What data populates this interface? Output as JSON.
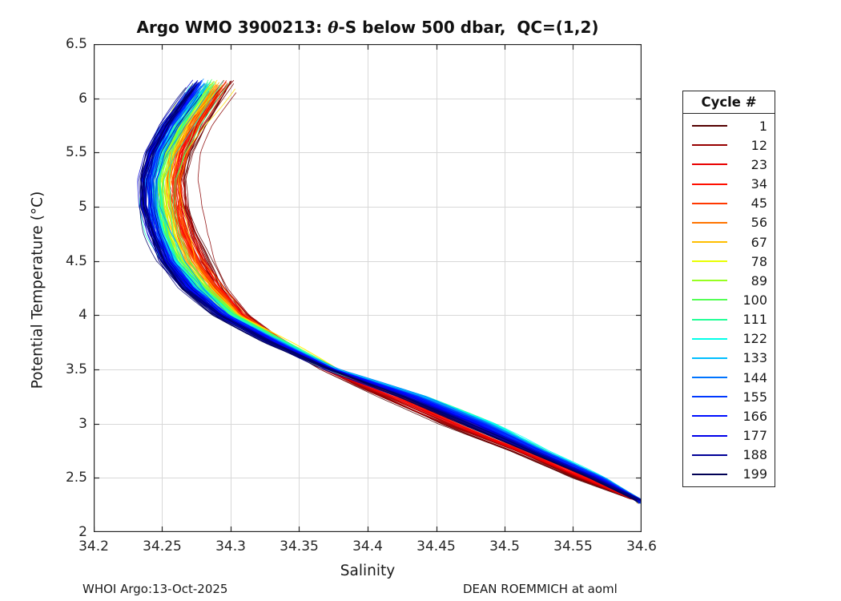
{
  "chart_data": {
    "type": "line",
    "title": {
      "prefix": "Argo WMO 3900213: ",
      "theta": "θ",
      "suffix": "-S below 500 dbar,  QC=(1,2)"
    },
    "xlabel": "Salinity",
    "ylabel": "Potential Temperature (°C)",
    "xlim": [
      34.2,
      34.6
    ],
    "ylim": [
      2,
      6.5
    ],
    "x_ticks": [
      34.2,
      34.25,
      34.3,
      34.35,
      34.4,
      34.45,
      34.5,
      34.55,
      34.6
    ],
    "x_tick_labels": [
      "34.2",
      "34.25",
      "34.3",
      "34.35",
      "34.4",
      "34.45",
      "34.5",
      "34.55",
      "34.6"
    ],
    "y_ticks": [
      2,
      2.5,
      3,
      3.5,
      4,
      4.5,
      5,
      5.5,
      6,
      6.5
    ],
    "y_tick_labels": [
      "2",
      "2.5",
      "3",
      "3.5",
      "4",
      "4.5",
      "5",
      "5.5",
      "6",
      "6.5"
    ],
    "grid": true,
    "grid_color": "#d8d8d8",
    "axis_color": "#262626",
    "background_color": "#ffffff",
    "legend": {
      "title": "Cycle #",
      "position": "outside-right",
      "entries": [
        {
          "label": "1",
          "color": "#540000"
        },
        {
          "label": "12",
          "color": "#970000"
        },
        {
          "label": "23",
          "color": "#E90000"
        },
        {
          "label": "34",
          "color": "#FF0F00"
        },
        {
          "label": "45",
          "color": "#FF3800"
        },
        {
          "label": "56",
          "color": "#FF7400"
        },
        {
          "label": "67",
          "color": "#FFBE00"
        },
        {
          "label": "78",
          "color": "#E9FF02"
        },
        {
          "label": "89",
          "color": "#97FF21"
        },
        {
          "label": "100",
          "color": "#54FF54"
        },
        {
          "label": "111",
          "color": "#21FF97"
        },
        {
          "label": "122",
          "color": "#02FFE9"
        },
        {
          "label": "133",
          "color": "#00BEFF"
        },
        {
          "label": "144",
          "color": "#0074FF"
        },
        {
          "label": "155",
          "color": "#0038FF"
        },
        {
          "label": "166",
          "color": "#000FFF"
        },
        {
          "label": "177",
          "color": "#0000E9"
        },
        {
          "label": "188",
          "color": "#000097"
        },
        {
          "label": "199",
          "color": "#000054"
        }
      ]
    },
    "series_model": {
      "description": "Spaghetti plot of 199 Argo float theta-S profiles (cycles 1-199) below 500 dbar; colored by reversed-jet colormap (cycle 1 dark red, cycle 199 dark blue). All profiles converge at the bottom near (34.6, 2.28); early (red) cycles are saltier at mid/upper levels, late (blue) cycles fresher; mid (green) cycles warmest at depth.",
      "n_profiles": 199,
      "cycle_range": [
        1,
        199
      ],
      "colormap": "jet reversed, gamma 1.6",
      "theta_grid": [
        2.28,
        2.5,
        2.75,
        3.0,
        3.25,
        3.5,
        3.75,
        4.0,
        4.25,
        4.5,
        4.75,
        5.0,
        5.25,
        5.5,
        5.75,
        6.0,
        6.2
      ],
      "salinity_early_cycles": [
        34.6,
        34.55,
        34.505,
        34.452,
        34.408,
        34.368,
        34.336,
        34.31,
        34.294,
        34.283,
        34.274,
        34.268,
        34.266,
        34.27,
        34.279,
        34.292,
        34.303
      ],
      "salinity_mid_cycles": [
        34.6,
        34.572,
        34.528,
        34.488,
        34.438,
        34.374,
        34.338,
        34.3,
        34.278,
        34.261,
        34.252,
        34.248,
        34.247,
        34.252,
        34.262,
        34.276,
        34.288
      ],
      "salinity_late_cycles": [
        34.6,
        34.562,
        34.515,
        34.468,
        34.422,
        34.372,
        34.327,
        34.29,
        34.265,
        34.25,
        34.242,
        34.236,
        34.235,
        34.24,
        34.251,
        34.266,
        34.278
      ],
      "convergence_point": [
        34.6,
        2.28
      ],
      "theta_top_range": [
        6.0,
        6.2
      ],
      "theta_bottom_range": [
        2.26,
        2.31
      ],
      "jitter_salinity": 0.006
    },
    "footnotes": {
      "left": "WHOI Argo:13-Oct-2025",
      "right": "DEAN ROEMMICH at aoml"
    }
  }
}
